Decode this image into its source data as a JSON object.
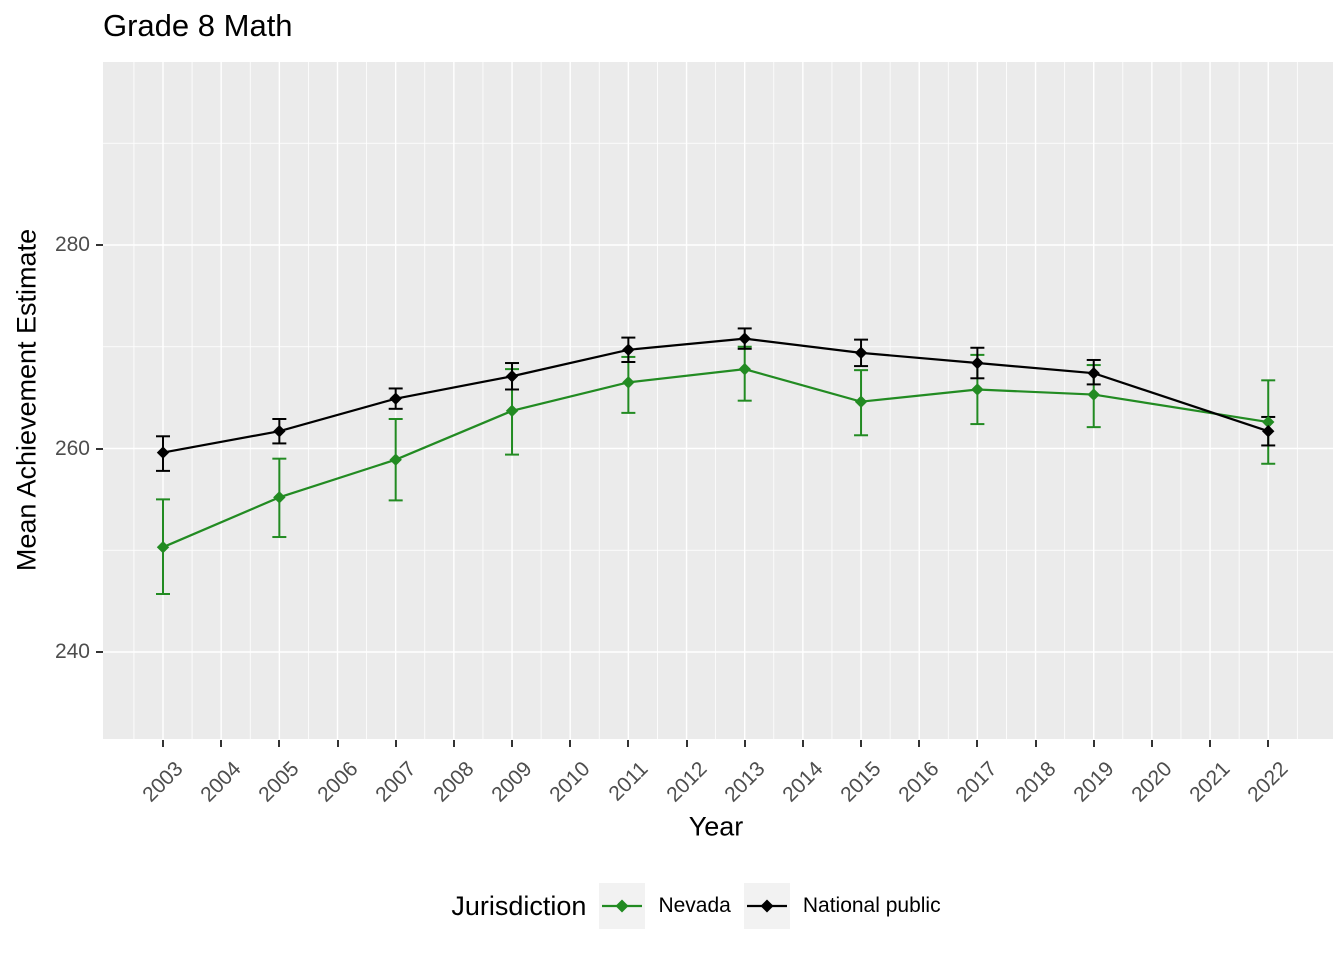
{
  "chart_data": {
    "type": "line",
    "title": "Grade 8 Math",
    "xlabel": "Year",
    "ylabel": "Mean Achievement Estimate",
    "legend_title": "Jurisdiction",
    "legend_position": "bottom",
    "grid": true,
    "panel_bg": "#EBEBEB",
    "grid_color": "#FFFFFF",
    "tick_label_color": "#4D4D4D",
    "legend_key_bg": "#F2F2F2",
    "x_ticks": [
      2003,
      2004,
      2005,
      2006,
      2007,
      2008,
      2009,
      2010,
      2011,
      2012,
      2013,
      2014,
      2015,
      2016,
      2017,
      2018,
      2019,
      2020,
      2021,
      2022
    ],
    "y_ticks": [
      240,
      260,
      280
    ],
    "y_minor_ticks": [
      250,
      270,
      290
    ],
    "xlim": [
      2002.0,
      2023.1
    ],
    "ylim": [
      231.4,
      298.0
    ],
    "x": [
      2003,
      2005,
      2007,
      2009,
      2011,
      2013,
      2015,
      2017,
      2019,
      2022
    ],
    "series": [
      {
        "name": "Nevada",
        "color": "#228B22",
        "values": [
          250.3,
          255.2,
          258.9,
          263.7,
          266.5,
          267.8,
          264.6,
          265.8,
          265.3,
          262.6
        ],
        "err_low": [
          245.7,
          251.3,
          254.9,
          259.4,
          263.5,
          264.7,
          261.3,
          262.4,
          262.1,
          258.5
        ],
        "err_high": [
          255.0,
          259.0,
          262.9,
          267.8,
          269.0,
          270.0,
          267.7,
          269.2,
          268.2,
          266.7
        ]
      },
      {
        "name": "National public",
        "color": "#000000",
        "values": [
          259.6,
          261.7,
          264.9,
          267.1,
          269.7,
          270.8,
          269.4,
          268.4,
          267.4,
          261.7
        ],
        "err_low": [
          257.8,
          260.5,
          263.9,
          265.8,
          268.5,
          269.8,
          268.1,
          266.9,
          266.3,
          260.3
        ],
        "err_high": [
          261.2,
          262.9,
          265.9,
          268.4,
          270.9,
          271.8,
          270.7,
          269.9,
          268.7,
          263.1
        ]
      }
    ]
  }
}
